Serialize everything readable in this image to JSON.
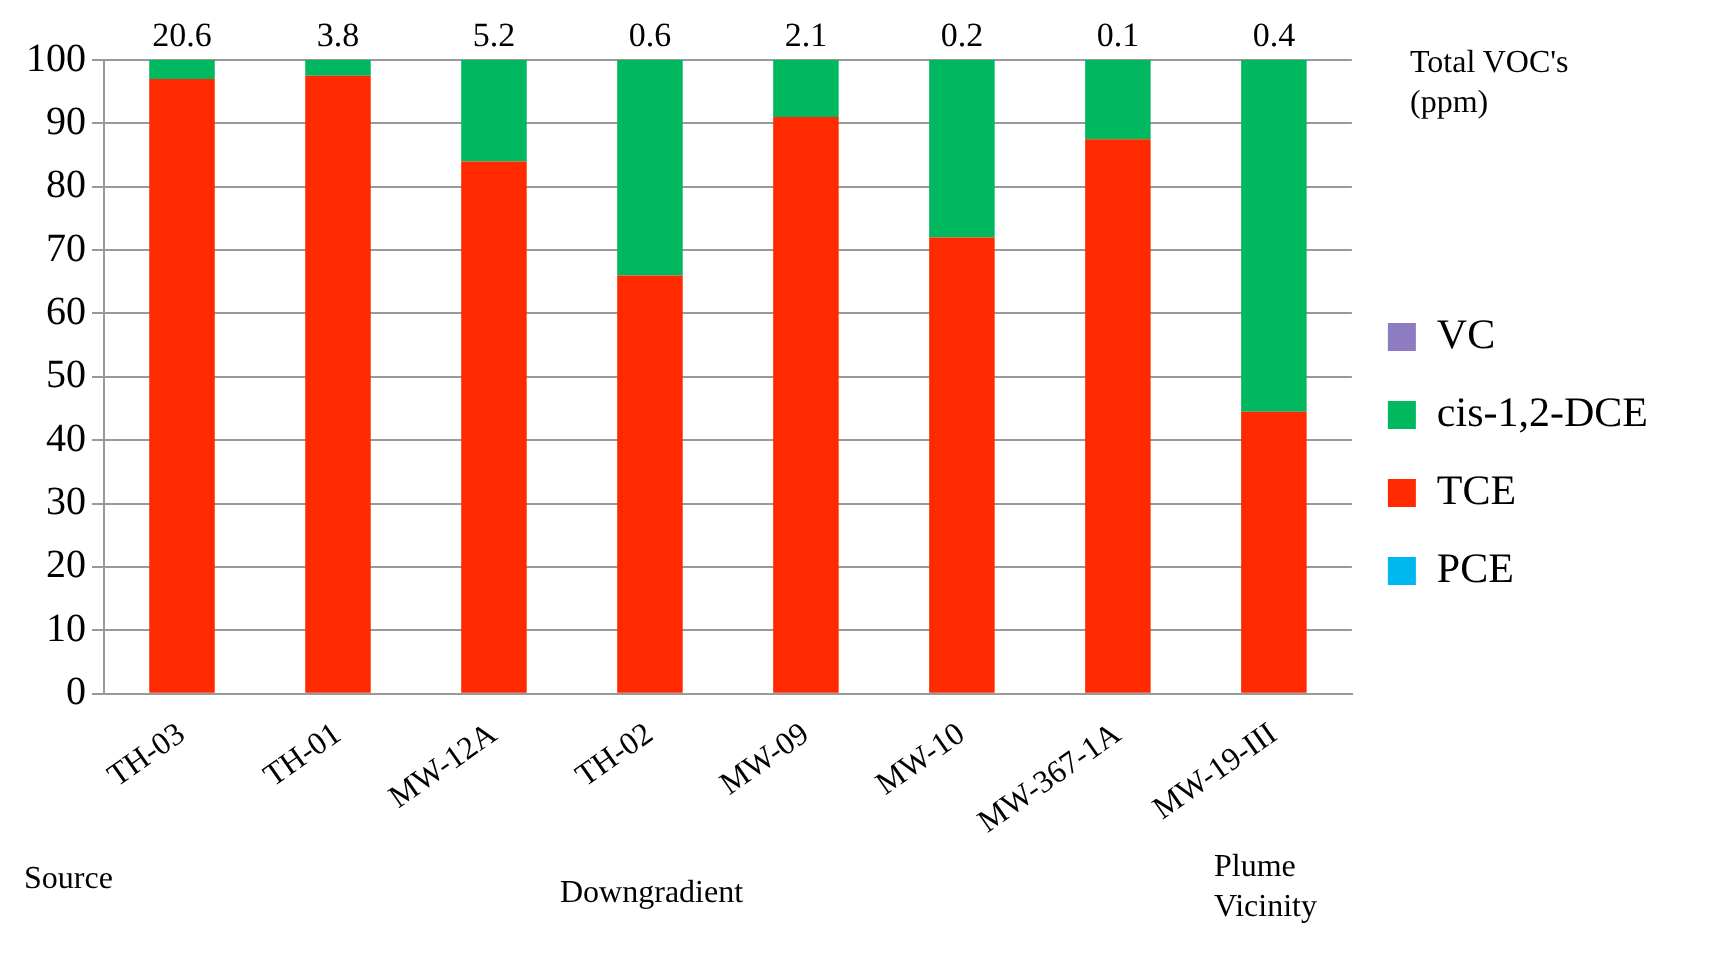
{
  "chart_data": {
    "type": "bar",
    "stacked": true,
    "categories": [
      "TH-03",
      "TH-01",
      "MW-12A",
      "TH-02",
      "MW-09",
      "MW-10",
      "MW-367-1A",
      "MW-19-III"
    ],
    "series": [
      {
        "name": "PCE",
        "color": "#00b8f0",
        "values": [
          0,
          0,
          0,
          0,
          0,
          0,
          0,
          0
        ]
      },
      {
        "name": "TCE",
        "color": "#ff2a00",
        "values": [
          97,
          97.5,
          84,
          66,
          91,
          72,
          87.5,
          44.5
        ]
      },
      {
        "name": "cis-1,2-DCE",
        "color": "#00b860",
        "values": [
          3,
          2.5,
          16,
          34,
          9,
          28,
          12.5,
          55.5
        ]
      },
      {
        "name": "VC",
        "color": "#8e7cc3",
        "values": [
          0,
          0,
          0,
          0,
          0,
          0,
          0,
          0
        ]
      }
    ],
    "ylim": [
      0,
      100
    ],
    "yticks": [
      0,
      10,
      20,
      30,
      40,
      50,
      60,
      70,
      80,
      90,
      100
    ],
    "grid": "y",
    "legend": "right",
    "annotations": [
      "20.6",
      "3.8",
      "5.2",
      "0.6",
      "2.1",
      "0.2",
      "0.1",
      "0.4",
      "Total VOC's (ppm)",
      "Source",
      "Downgradient",
      "Plume Vicinity"
    ]
  }
}
